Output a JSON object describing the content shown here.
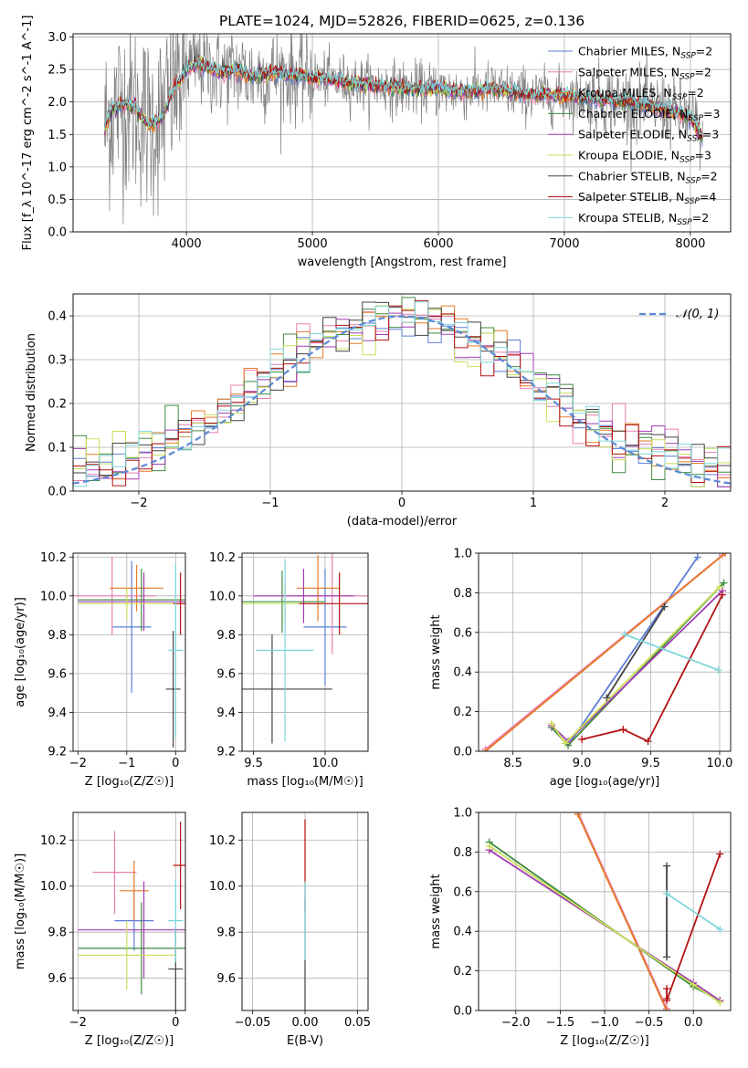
{
  "colors": {
    "chabrier_miles": "#5b7fd6",
    "salpeter_miles": "#e87fb0",
    "kroupa_miles": "#e77a27",
    "chabrier_elodie": "#3f8a3f",
    "salpeter_elodie": "#a23bb4",
    "kroupa_elodie": "#c9df5a",
    "chabrier_stelib": "#444444",
    "salpeter_stelib": "#b31212",
    "kroupa_stelib": "#7fd6dc",
    "spectrum_gray": "#808080",
    "normal_curve": "#5b8ad6",
    "grid": "#b0b0b0"
  },
  "series_names": [
    "Chabrier MILES",
    "Salpeter MILES",
    "Kroupa MILES",
    "Chabrier ELODIE",
    "Salpeter ELODIE",
    "Kroupa ELODIE",
    "Chabrier STELIB",
    "Salpeter STELIB",
    "Kroupa STELIB"
  ],
  "chart_data": [
    {
      "id": "spectrum",
      "type": "line",
      "title": "PLATE=1024, MJD=52826, FIBERID=0625, z=0.136",
      "xlabel": "wavelength [Angstrom, rest frame]",
      "ylabel": "Flux [f_λ 10^-17 erg cm^-2 s^-1 A^-1]",
      "xlim": [
        3100,
        8320
      ],
      "ylim": [
        0,
        3.05
      ],
      "xticks": [
        4000,
        5000,
        6000,
        7000,
        8000
      ],
      "yticks": [
        0.0,
        0.5,
        1.0,
        1.5,
        2.0,
        2.5,
        3.0
      ],
      "legend_position": "top-right",
      "legend": [
        {
          "label": "Chabrier MILES, N",
          "sub": "SSP",
          "suffix": "=2",
          "color_key": "chabrier_miles"
        },
        {
          "label": "Salpeter MILES, N",
          "sub": "SSP",
          "suffix": "=2",
          "color_key": "salpeter_miles"
        },
        {
          "label": "Kroupa MILES, N",
          "sub": "SSP",
          "suffix": "=2",
          "color_key": "kroupa_miles"
        },
        {
          "label": "Chabrier ELODIE, N",
          "sub": "SSP",
          "suffix": "=3",
          "color_key": "chabrier_elodie"
        },
        {
          "label": "Salpeter ELODIE, N",
          "sub": "SSP",
          "suffix": "=3",
          "color_key": "salpeter_elodie"
        },
        {
          "label": "Kroupa ELODIE, N",
          "sub": "SSP",
          "suffix": "=3",
          "color_key": "kroupa_elodie"
        },
        {
          "label": "Chabrier STELIB, N",
          "sub": "SSP",
          "suffix": "=2",
          "color_key": "chabrier_stelib"
        },
        {
          "label": "Salpeter STELIB, N",
          "sub": "SSP",
          "suffix": "=4",
          "color_key": "salpeter_stelib"
        },
        {
          "label": "Kroupa STELIB, N",
          "sub": "SSP",
          "suffix": "=2",
          "color_key": "kroupa_stelib"
        }
      ],
      "model_curve": {
        "x": [
          3350,
          3400,
          3500,
          3600,
          3700,
          3800,
          3900,
          4000,
          4100,
          4200,
          4300,
          4400,
          4500,
          4700,
          4900,
          5100,
          5300,
          5500,
          5800,
          6000,
          6200,
          6400,
          6600,
          6800,
          7000,
          7200,
          7500,
          7800,
          8000,
          8100
        ],
        "y": [
          1.55,
          1.85,
          2.0,
          1.9,
          1.65,
          1.75,
          2.2,
          2.5,
          2.6,
          2.5,
          2.45,
          2.5,
          2.4,
          2.45,
          2.4,
          2.35,
          2.3,
          2.25,
          2.2,
          2.2,
          2.15,
          2.2,
          2.15,
          2.1,
          2.1,
          2.05,
          2.0,
          1.9,
          1.75,
          1.45
        ]
      },
      "observed_range": [
        3350,
        8100
      ]
    },
    {
      "id": "residuals",
      "type": "histogram",
      "xlabel": "(data-model)/error",
      "ylabel": "Normed distribution",
      "xlim": [
        -2.5,
        2.5
      ],
      "ylim": [
        0,
        0.45
      ],
      "xticks": [
        -2,
        -1,
        0,
        1,
        2
      ],
      "yticks": [
        0.0,
        0.1,
        0.2,
        0.3,
        0.4
      ],
      "legend_position": "top-right",
      "curve_label": "𝒩(0, 1)",
      "bin_width": 0.1
    },
    {
      "id": "age_vs_Z",
      "type": "errorbar",
      "xlabel": "Z [log₁₀(Z/Z☉)]",
      "ylabel": "age  [log₁₀(age/yr)]",
      "xlim": [
        -2.1,
        0.2
      ],
      "ylim": [
        9.2,
        10.22
      ],
      "xticks": [
        -2,
        -1,
        0
      ],
      "yticks": [
        9.2,
        9.4,
        9.6,
        9.8,
        10.0,
        10.2
      ],
      "points": [
        {
          "key": "chabrier_miles",
          "x": -0.9,
          "xerr": 0.4,
          "y": 9.84,
          "yerr": 0.34
        },
        {
          "key": "salpeter_miles",
          "x": -1.3,
          "xerr": 0.9,
          "y": 10.0,
          "yerr": 0.2
        },
        {
          "key": "kroupa_miles",
          "x": -0.8,
          "xerr": 0.55,
          "y": 10.04,
          "yerr": 0.12
        },
        {
          "key": "chabrier_elodie",
          "x": -0.7,
          "xerr": 1.3,
          "y": 9.98,
          "yerr": 0.16
        },
        {
          "key": "salpeter_elodie",
          "x": -0.65,
          "xerr": 1.35,
          "y": 9.97,
          "yerr": 0.15
        },
        {
          "key": "kroupa_elodie",
          "x": -1.0,
          "xerr": 1.0,
          "y": 9.96,
          "yerr": 0.08
        },
        {
          "key": "chabrier_stelib",
          "x": -0.05,
          "xerr": 0.15,
          "y": 9.52,
          "yerr": 0.3
        },
        {
          "key": "salpeter_stelib",
          "x": 0.1,
          "xerr": 0.15,
          "y": 9.96,
          "yerr": 0.16
        },
        {
          "key": "kroupa_stelib",
          "x": 0.0,
          "xerr": 0.15,
          "y": 9.72,
          "yerr": 0.45
        }
      ]
    },
    {
      "id": "age_vs_mass",
      "type": "errorbar",
      "xlabel": "mass [log₁₀(M/M☉)]",
      "ylabel": "",
      "xlim": [
        9.42,
        10.3
      ],
      "ylim": [
        9.2,
        10.22
      ],
      "xticks": [
        9.5,
        10.0
      ],
      "yticks": [
        9.2,
        9.4,
        9.6,
        9.8,
        10.0,
        10.2
      ],
      "points": [
        {
          "key": "chabrier_miles",
          "x": 10.0,
          "xerr": 0.15,
          "y": 9.84,
          "yerr": 0.3
        },
        {
          "key": "salpeter_miles",
          "x": 10.05,
          "xerr": 0.3,
          "y": 10.0,
          "yerr": 0.3
        },
        {
          "key": "kroupa_miles",
          "x": 9.95,
          "xerr": 0.15,
          "y": 10.04,
          "yerr": 0.17
        },
        {
          "key": "chabrier_elodie",
          "x": 9.7,
          "xerr": 0.3,
          "y": 9.97,
          "yerr": 0.16
        },
        {
          "key": "salpeter_elodie",
          "x": 9.85,
          "xerr": 0.35,
          "y": 10.0,
          "yerr": 0.14
        },
        {
          "key": "kroupa_elodie",
          "x": 9.72,
          "xerr": 0.3,
          "y": 9.96,
          "yerr": 0.1
        },
        {
          "key": "chabrier_stelib",
          "x": 9.63,
          "xerr": 0.42,
          "y": 9.52,
          "yerr": 0.28
        },
        {
          "key": "salpeter_stelib",
          "x": 10.1,
          "xerr": 0.28,
          "y": 9.96,
          "yerr": 0.16
        },
        {
          "key": "kroupa_stelib",
          "x": 9.72,
          "xerr": 0.2,
          "y": 9.72,
          "yerr": 0.47
        }
      ]
    },
    {
      "id": "weight_vs_age",
      "type": "line",
      "xlabel": "age  [log₁₀(age/yr)]",
      "ylabel": "mass weight",
      "xlim": [
        8.25,
        10.08
      ],
      "ylim": [
        0,
        1.0
      ],
      "xticks": [
        8.5,
        9.0,
        9.5,
        10.0
      ],
      "yticks": [
        0.0,
        0.2,
        0.4,
        0.6,
        0.8,
        1.0
      ],
      "series": [
        {
          "key": "chabrier_miles",
          "x": [
            8.9,
            9.84
          ],
          "y": [
            0.03,
            0.98
          ]
        },
        {
          "key": "salpeter_miles",
          "x": [
            8.3,
            10.02
          ],
          "y": [
            0.01,
            0.99
          ]
        },
        {
          "key": "kroupa_miles",
          "x": [
            8.3,
            10.04
          ],
          "y": [
            0.0,
            1.0
          ]
        },
        {
          "key": "chabrier_elodie",
          "x": [
            8.78,
            8.9,
            10.03
          ],
          "y": [
            0.12,
            0.03,
            0.85
          ]
        },
        {
          "key": "salpeter_elodie",
          "x": [
            8.78,
            8.9,
            10.02
          ],
          "y": [
            0.13,
            0.05,
            0.81
          ]
        },
        {
          "key": "kroupa_elodie",
          "x": [
            8.78,
            8.88,
            10.0
          ],
          "y": [
            0.14,
            0.04,
            0.83
          ]
        },
        {
          "key": "chabrier_stelib",
          "x": [
            9.18,
            9.6
          ],
          "y": [
            0.27,
            0.73
          ]
        },
        {
          "key": "salpeter_stelib",
          "x": [
            9.0,
            9.3,
            9.48,
            10.02
          ],
          "y": [
            0.06,
            0.11,
            0.05,
            0.79
          ]
        },
        {
          "key": "kroupa_stelib",
          "x": [
            9.31,
            9.99
          ],
          "y": [
            0.59,
            0.41
          ]
        }
      ]
    },
    {
      "id": "mass_vs_Z",
      "type": "errorbar",
      "xlabel": "Z [log₁₀(Z/Z☉)]",
      "ylabel": "mass [log₁₀(M/M☉)]",
      "xlim": [
        -2.1,
        0.2
      ],
      "ylim": [
        9.46,
        10.32
      ],
      "xticks": [
        -2,
        0
      ],
      "yticks": [
        9.6,
        9.8,
        10.0,
        10.2
      ],
      "points": [
        {
          "key": "chabrier_miles",
          "x": -0.85,
          "xerr": 0.4,
          "y": 9.85,
          "yerr": 0.13
        },
        {
          "key": "salpeter_miles",
          "x": -1.25,
          "xerr": 0.45,
          "y": 10.06,
          "yerr": 0.18
        },
        {
          "key": "kroupa_miles",
          "x": -0.85,
          "xerr": 0.3,
          "y": 9.98,
          "yerr": 0.13
        },
        {
          "key": "chabrier_elodie",
          "x": -0.7,
          "xerr": 1.3,
          "y": 9.73,
          "yerr": 0.2
        },
        {
          "key": "salpeter_elodie",
          "x": -0.65,
          "xerr": 1.35,
          "y": 9.81,
          "yerr": 0.21
        },
        {
          "key": "kroupa_elodie",
          "x": -1.0,
          "xerr": 1.0,
          "y": 9.7,
          "yerr": 0.15
        },
        {
          "key": "chabrier_stelib",
          "x": 0.0,
          "xerr": 0.15,
          "y": 9.64,
          "yerr": 0.18
        },
        {
          "key": "salpeter_stelib",
          "x": 0.1,
          "xerr": 0.15,
          "y": 10.09,
          "yerr": 0.19
        },
        {
          "key": "kroupa_stelib",
          "x": 0.0,
          "xerr": 0.15,
          "y": 9.85,
          "yerr": 0.18
        }
      ]
    },
    {
      "id": "mass_vs_ebv",
      "type": "errorbar",
      "xlabel": "E(B-V)",
      "ylabel": "",
      "xlim": [
        -0.06,
        0.06
      ],
      "ylim": [
        9.46,
        10.32
      ],
      "xticks": [
        -0.05,
        0.0,
        0.05
      ],
      "yticks": [
        9.6,
        9.8,
        10.0,
        10.2
      ],
      "points": [
        {
          "key": "chabrier_stelib",
          "x": 0.0,
          "xerr": 0.0,
          "y": 9.7,
          "yerr": 0.25
        },
        {
          "key": "salpeter_stelib",
          "x": 0.0,
          "xerr": 0.0,
          "y": 10.09,
          "yerr": 0.2
        },
        {
          "key": "kroupa_stelib",
          "x": 0.0,
          "xerr": 0.0,
          "y": 9.85,
          "yerr": 0.17
        }
      ]
    },
    {
      "id": "weight_vs_Z",
      "type": "line",
      "xlabel": "Z [log₁₀(Z/Z☉)]",
      "ylabel": "mass weight",
      "xlim": [
        -2.42,
        0.42
      ],
      "ylim": [
        0,
        1.0
      ],
      "xticks": [
        -2.0,
        -1.5,
        -1.0,
        -0.5,
        0.0
      ],
      "yticks": [
        0.0,
        0.2,
        0.4,
        0.6,
        0.8,
        1.0
      ],
      "series": [
        {
          "key": "chabrier_miles",
          "x": [
            -1.3,
            -0.3
          ],
          "y": [
            1.0,
            0.0
          ]
        },
        {
          "key": "salpeter_miles",
          "x": [
            -1.3,
            -0.3
          ],
          "y": [
            1.0,
            0.01
          ]
        },
        {
          "key": "kroupa_miles",
          "x": [
            -1.3,
            -0.3
          ],
          "y": [
            0.99,
            0.0
          ]
        },
        {
          "key": "chabrier_elodie",
          "x": [
            -2.3,
            0.0,
            0.3
          ],
          "y": [
            0.85,
            0.12,
            0.05
          ]
        },
        {
          "key": "salpeter_elodie",
          "x": [
            -2.3,
            0.0,
            0.3
          ],
          "y": [
            0.81,
            0.14,
            0.05
          ]
        },
        {
          "key": "kroupa_elodie",
          "x": [
            -2.3,
            0.0,
            0.3
          ],
          "y": [
            0.83,
            0.13,
            0.04
          ]
        },
        {
          "key": "chabrier_stelib",
          "x": [
            -0.3,
            -0.3
          ],
          "y": [
            0.73,
            0.27
          ]
        },
        {
          "key": "salpeter_stelib",
          "x": [
            -0.3,
            -0.3,
            -0.3,
            0.3
          ],
          "y": [
            0.06,
            0.11,
            0.05,
            0.79
          ]
        },
        {
          "key": "kroupa_stelib",
          "x": [
            -0.3,
            0.3
          ],
          "y": [
            0.59,
            0.41
          ]
        }
      ]
    }
  ]
}
